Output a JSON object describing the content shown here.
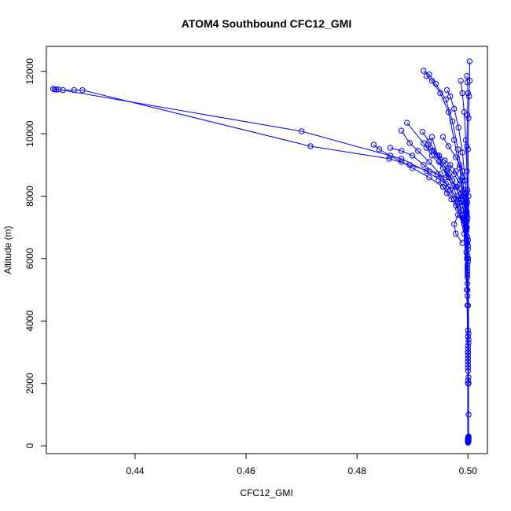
{
  "chart_data": {
    "type": "line",
    "title": "ATOM4 Southbound CFC12_GMI",
    "xlabel": "CFC12_GMI",
    "ylabel": "Altitude (m)",
    "xlim": [
      0.424,
      0.5035
    ],
    "ylim": [
      -250,
      12800
    ],
    "x_ticks": [
      0.44,
      0.46,
      0.48,
      0.5
    ],
    "x_tick_labels": [
      "0.44",
      "0.46",
      "0.48",
      "0.50"
    ],
    "y_ticks": [
      0,
      2000,
      4000,
      6000,
      8000,
      10000,
      12000
    ],
    "y_tick_labels": [
      "0",
      "2000",
      "4000",
      "6000",
      "8000",
      "10000",
      "12000"
    ],
    "grid": false,
    "legend": "none",
    "marker": "open-circle",
    "series_color": "#0000ff",
    "series": [
      {
        "x": [
          0.5,
          0.5001,
          0.5,
          0.4999,
          0.5,
          0.4998,
          0.4996,
          0.499,
          0.498,
          0.496,
          0.493,
          0.4895,
          0.4858,
          0.4716,
          0.4305,
          0.429,
          0.427,
          0.4258,
          0.4255,
          0.4252
        ],
        "y": [
          100,
          1000,
          3000,
          5000,
          6000,
          7000,
          7500,
          8000,
          8300,
          8600,
          8800,
          9000,
          9200,
          9600,
          11400,
          11400,
          11400,
          11420,
          11420,
          11440
        ]
      },
      {
        "x": [
          0.5001,
          0.5,
          0.4999,
          0.4997,
          0.4993,
          0.4982,
          0.496,
          0.4925,
          0.488,
          0.47,
          0.4262
        ],
        "y": [
          300,
          2000,
          4500,
          6200,
          7200,
          7900,
          8400,
          8800,
          9200,
          10080,
          11420
        ]
      },
      {
        "x": [
          0.5,
          0.5001,
          0.5,
          0.4998,
          0.499,
          0.4975,
          0.4955,
          0.493,
          0.49,
          0.488,
          0.486,
          0.484,
          0.483
        ],
        "y": [
          200,
          2000,
          4500,
          6500,
          7400,
          7900,
          8300,
          8600,
          8900,
          9100,
          9300,
          9500,
          9650
        ]
      },
      {
        "x": [
          0.5,
          0.5,
          0.4999,
          0.4995,
          0.4985,
          0.4965,
          0.4945,
          0.492,
          0.49,
          0.488,
          0.486
        ],
        "y": [
          150,
          3000,
          5500,
          7000,
          7800,
          8300,
          8700,
          9000,
          9300,
          9450,
          9550
        ]
      },
      {
        "x": [
          0.5001,
          0.5,
          0.4998,
          0.4993,
          0.4982,
          0.4968,
          0.495,
          0.493,
          0.491,
          0.4895,
          0.488
        ],
        "y": [
          250,
          2500,
          5000,
          6800,
          7600,
          8200,
          8700,
          9100,
          9450,
          9700,
          10100
        ]
      },
      {
        "x": [
          0.5,
          0.5001,
          0.4999,
          0.4997,
          0.499,
          0.4978,
          0.4962,
          0.4945,
          0.493,
          0.4918
        ],
        "y": [
          120,
          2200,
          5200,
          6900,
          7700,
          8300,
          8800,
          9300,
          9750,
          10060
        ]
      },
      {
        "x": [
          0.5,
          0.5,
          0.4999,
          0.4996,
          0.4988,
          0.4972,
          0.4955,
          0.4935,
          0.492,
          0.489
        ],
        "y": [
          180,
          2800,
          5800,
          7100,
          7900,
          8500,
          8900,
          9300,
          9700,
          10350
        ]
      },
      {
        "x": [
          0.5001,
          0.5,
          0.4998,
          0.4992,
          0.498,
          0.4965,
          0.4948,
          0.4935
        ],
        "y": [
          140,
          3200,
          6000,
          7300,
          8000,
          8600,
          9100,
          9900
        ]
      },
      {
        "x": [
          0.5,
          0.5,
          0.4999,
          0.4997,
          0.4992,
          0.4985,
          0.4975,
          0.4965,
          0.495,
          0.4935,
          0.4925
        ],
        "y": [
          160,
          2600,
          5400,
          7000,
          8000,
          8900,
          9800,
          10700,
          11300,
          11700,
          11850
        ]
      },
      {
        "x": [
          0.5001,
          0.5,
          0.4999,
          0.4996,
          0.499,
          0.4982,
          0.4972,
          0.496,
          0.4942,
          0.493,
          0.492
        ],
        "y": [
          220,
          3100,
          6100,
          7600,
          8600,
          9500,
          10400,
          11100,
          11600,
          11900,
          12020
        ]
      },
      {
        "x": [
          0.5,
          0.5,
          0.4999,
          0.4998,
          0.4995,
          0.499,
          0.4983,
          0.4975,
          0.4968,
          0.4962
        ],
        "y": [
          130,
          2400,
          5600,
          7400,
          8500,
          9400,
          10200,
          10800,
          11200,
          11400
        ]
      },
      {
        "x": [
          0.5,
          0.5001,
          0.5,
          0.4999,
          0.4998,
          0.4996,
          0.4993,
          0.499,
          0.4987
        ],
        "y": [
          190,
          3300,
          6300,
          7800,
          8800,
          9800,
          10700,
          11300,
          11700
        ]
      },
      {
        "x": [
          0.5001,
          0.5,
          0.5,
          0.4999,
          0.4997,
          0.4994,
          0.499,
          0.4985,
          0.4978,
          0.4965,
          0.4955
        ],
        "y": [
          170,
          2900,
          5900,
          7300,
          8100,
          8500,
          8800,
          9000,
          9250,
          9600,
          9900
        ]
      },
      {
        "x": [
          0.5,
          0.5001,
          0.5,
          0.4998,
          0.4994,
          0.4988,
          0.498,
          0.4972,
          0.4964
        ],
        "y": [
          210,
          3400,
          6400,
          7500,
          7800,
          8100,
          8300,
          8500,
          8700
        ]
      },
      {
        "x": [
          0.5,
          0.5,
          0.4999,
          0.4997,
          0.4993,
          0.4986,
          0.4978,
          0.497,
          0.4962,
          0.4955,
          0.4947
        ],
        "y": [
          110,
          2100,
          4800,
          6600,
          7100,
          7400,
          7700,
          7900,
          8100,
          8300,
          8500
        ]
      },
      {
        "x": [
          0.5001,
          0.5,
          0.4999,
          0.4996,
          0.499,
          0.4982,
          0.4975,
          0.4978,
          0.499
        ],
        "y": [
          230,
          3500,
          6500,
          7100,
          7300,
          7400,
          7100,
          6800,
          6500
        ]
      },
      {
        "x": [
          0.5,
          0.5,
          0.5,
          0.5001,
          0.5,
          0.5001,
          0.5002,
          0.5003,
          0.5003
        ],
        "y": [
          150,
          3000,
          6000,
          8000,
          9500,
          10500,
          11200,
          11700,
          12320
        ]
      },
      {
        "x": [
          0.5,
          0.5001,
          0.5,
          0.4999,
          0.4998,
          0.4999,
          0.5,
          0.4999,
          0.4998
        ],
        "y": [
          260,
          3600,
          6600,
          8200,
          9600,
          10600,
          11300,
          11650,
          11850
        ]
      },
      {
        "x": [
          0.5001,
          0.5,
          0.4999,
          0.4997,
          0.4993,
          0.4985,
          0.4975,
          0.4965,
          0.4955,
          0.4945,
          0.4935,
          0.4925
        ],
        "y": [
          280,
          3700,
          6700,
          7700,
          8100,
          8400,
          8700,
          8900,
          9100,
          9300,
          9450,
          9550
        ]
      },
      {
        "x": [
          0.5,
          0.5,
          0.4999,
          0.4998,
          0.4996,
          0.4992,
          0.4986,
          0.4978,
          0.4968,
          0.4958,
          0.4948,
          0.4938,
          0.4928
        ],
        "y": [
          240,
          2700,
          5700,
          7200,
          7800,
          8200,
          8500,
          8800,
          9000,
          9150,
          9300,
          9450,
          9650
        ]
      }
    ]
  }
}
